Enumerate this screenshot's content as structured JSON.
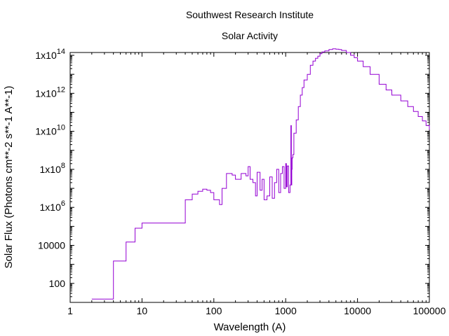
{
  "chart_data": {
    "type": "line",
    "subtitle": "Southwest Research Institute",
    "title": "Solar Activity",
    "xlabel": "Wavelength  (A)",
    "ylabel": "Solar Flux  (Photons cm**-2 s**-1 A**-1)",
    "xscale": "log",
    "yscale": "log",
    "xlim": [
      1,
      100000
    ],
    "ylim": [
      10,
      100000000000000.0
    ],
    "grid": false,
    "line_color": "#9400d3",
    "x_ticks": [
      {
        "value": 1,
        "label": "1"
      },
      {
        "value": 10,
        "label": "10"
      },
      {
        "value": 100,
        "label": "100"
      },
      {
        "value": 1000,
        "label": "1000"
      },
      {
        "value": 10000,
        "label": "10000"
      },
      {
        "value": 100000,
        "label": "100000"
      }
    ],
    "y_ticks": [
      {
        "value": 100,
        "label": "100"
      },
      {
        "value": 10000,
        "label": "10000"
      },
      {
        "value": 1000000,
        "label": "1x10",
        "exp": "6"
      },
      {
        "value": 100000000,
        "label": "1x10",
        "exp": "8"
      },
      {
        "value": 10000000000,
        "label": "1x10",
        "exp": "10"
      },
      {
        "value": 1000000000000,
        "label": "1x10",
        "exp": "12"
      },
      {
        "value": 100000000000000,
        "label": "1x10",
        "exp": "14"
      }
    ],
    "series": [
      {
        "name": "Solar Flux",
        "style": "step",
        "x": [
          2,
          4,
          6,
          8,
          10,
          40,
          50,
          60,
          70,
          80,
          90,
          100,
          120,
          130,
          150,
          180,
          200,
          240,
          280,
          300,
          320,
          350,
          380,
          400,
          440,
          470,
          500,
          550,
          600,
          650,
          700,
          750,
          800,
          850,
          900,
          950,
          1000,
          1025,
          1050,
          1100,
          1150,
          1180,
          1200,
          1215,
          1230,
          1260,
          1300,
          1400,
          1500,
          1600,
          1700,
          1800,
          2000,
          2200,
          2400,
          2600,
          2800,
          3000,
          3200,
          3500,
          4000,
          4500,
          5000,
          5500,
          6000,
          7000,
          8000,
          9000,
          10000,
          12000,
          15000,
          20000,
          25000,
          30000,
          40000,
          50000,
          60000,
          70000,
          80000,
          90000,
          100000
        ],
        "y": [
          15,
          1500,
          15000,
          80000,
          150000,
          2500000,
          5000000,
          7000000,
          9000000,
          8000000,
          6000000,
          2500000,
          1400000,
          10000000,
          60000000,
          50000000,
          30000000,
          60000000,
          45000000,
          140000000,
          30000000,
          20000000,
          4000000,
          70000000,
          8000000,
          30000000,
          2500000,
          4000000,
          40000000,
          3000000,
          20000000,
          100000000,
          6000000,
          60000000,
          140000000,
          10000000,
          200000000,
          12000000,
          150000000,
          6000000,
          15000000,
          20000000000,
          15000000,
          100000000,
          400000000,
          600000000,
          8000000000,
          40000000000,
          200000000000,
          800000000000,
          2000000000000,
          5000000000000,
          10000000000000,
          30000000000000,
          50000000000000,
          70000000000000,
          90000000000000,
          120000000000000,
          150000000000000,
          170000000000000,
          200000000000000,
          220000000000000,
          210000000000000,
          200000000000000,
          180000000000000,
          140000000000000,
          100000000000000,
          75000000000000,
          50000000000000,
          25000000000000,
          10000000000000,
          3000000000000,
          1500000000000,
          800000000000,
          400000000000,
          200000000000,
          110000000000,
          60000000000,
          35000000000,
          20000000000,
          12000000000
        ]
      }
    ]
  }
}
